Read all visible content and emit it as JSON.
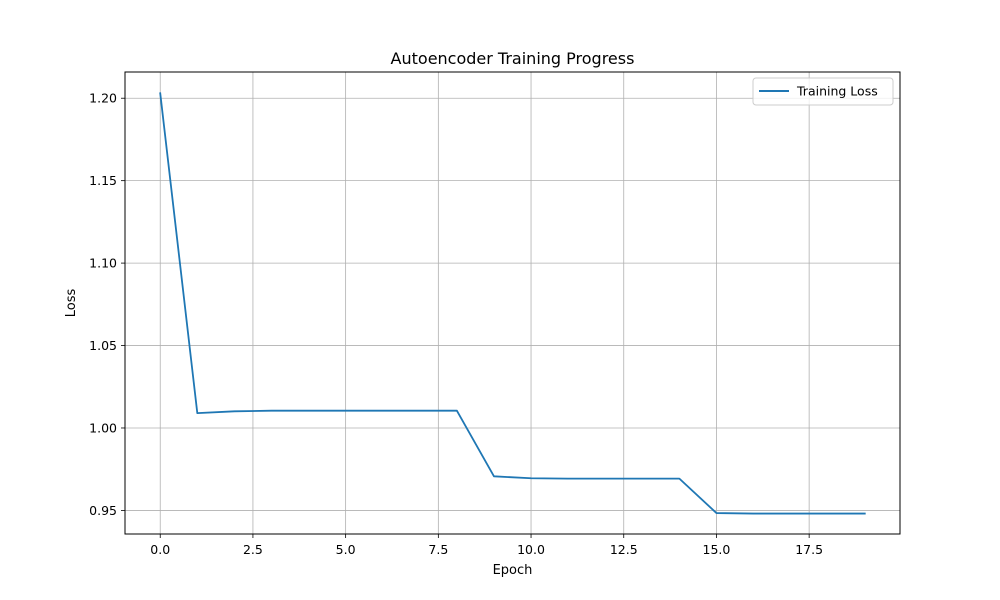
{
  "chart_data": {
    "type": "line",
    "title": "Autoencoder Training Progress",
    "xlabel": "Epoch",
    "ylabel": "Loss",
    "xlim": [
      -0.95,
      19.95
    ],
    "ylim": [
      0.9357,
      1.2159
    ],
    "xticks": [
      0.0,
      2.5,
      5.0,
      7.5,
      10.0,
      12.5,
      15.0,
      17.5
    ],
    "xtick_labels": [
      "0.0",
      "2.5",
      "5.0",
      "7.5",
      "10.0",
      "12.5",
      "15.0",
      "17.5"
    ],
    "yticks": [
      0.95,
      1.0,
      1.05,
      1.1,
      1.15,
      1.2
    ],
    "ytick_labels": [
      "0.95",
      "1.00",
      "1.05",
      "1.10",
      "1.15",
      "1.20"
    ],
    "grid": true,
    "legend_position": "top-right",
    "series": [
      {
        "name": "Training Loss",
        "color": "#1f77b4",
        "x": [
          0,
          1,
          2,
          3,
          4,
          5,
          6,
          7,
          8,
          9,
          10,
          11,
          12,
          13,
          14,
          15,
          16,
          17,
          18,
          19
        ],
        "y": [
          1.203,
          1.009,
          1.0101,
          1.0105,
          1.0105,
          1.0105,
          1.0105,
          1.0105,
          1.0105,
          0.9707,
          0.9695,
          0.9693,
          0.9693,
          0.9693,
          0.9693,
          0.9484,
          0.9481,
          0.9481,
          0.9481,
          0.9481
        ]
      }
    ]
  }
}
